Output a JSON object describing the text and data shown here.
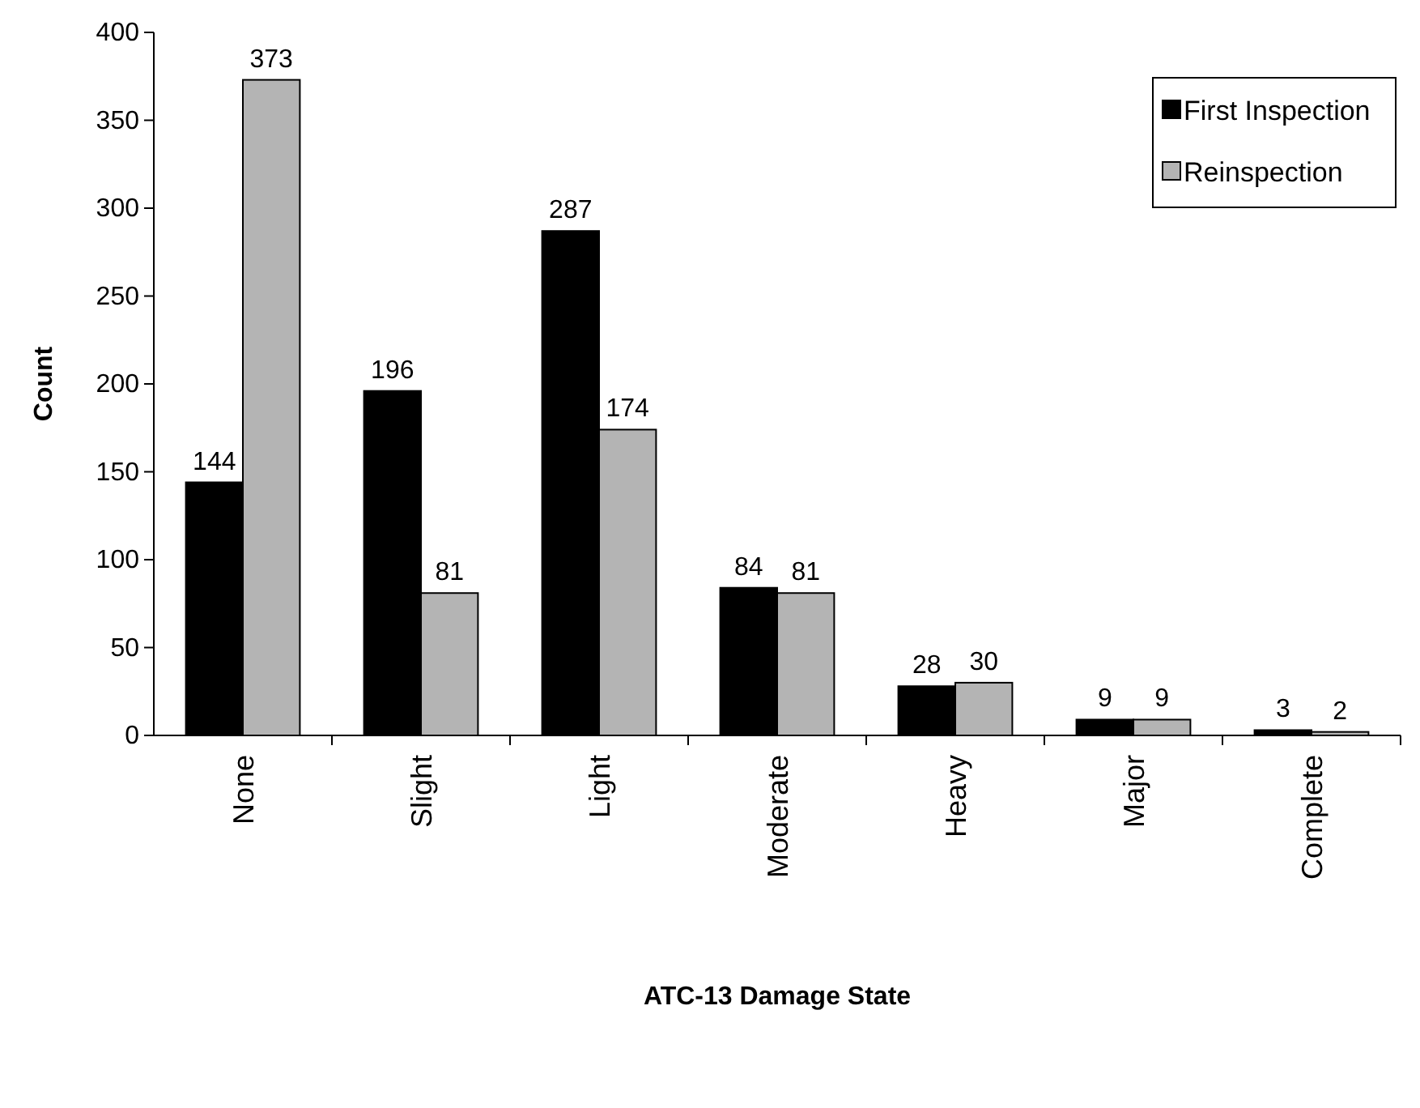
{
  "chart_data": {
    "type": "bar",
    "xlabel": "ATC-13 Damage State",
    "ylabel": "Count",
    "categories": [
      "None",
      "Slight",
      "Light",
      "Moderate",
      "Heavy",
      "Major",
      "Complete"
    ],
    "series": [
      {
        "name": "First Inspection",
        "color": "#000000",
        "values": [
          144,
          196,
          287,
          84,
          28,
          9,
          3
        ]
      },
      {
        "name": "Reinspection",
        "color": "#b4b4b4",
        "values": [
          373,
          81,
          174,
          81,
          30,
          9,
          2
        ]
      }
    ],
    "ylim": [
      0,
      400
    ],
    "yticks": [
      0,
      50,
      100,
      150,
      200,
      250,
      300,
      350,
      400
    ],
    "data_labels": true,
    "legend": "top right",
    "grid": false
  }
}
